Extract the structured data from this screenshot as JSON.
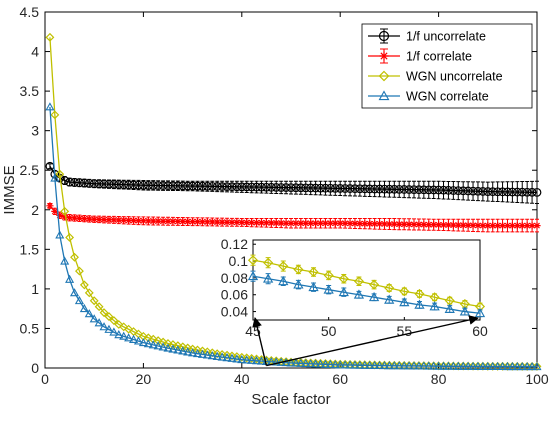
{
  "chart_data": [
    {
      "type": "line",
      "title": "",
      "xlabel": "Scale factor",
      "ylabel": "IMMSE",
      "xlim": [
        0,
        100
      ],
      "ylim": [
        0,
        4.5
      ],
      "xticks": [
        "0",
        "20",
        "40",
        "60",
        "80",
        "100"
      ],
      "yticks": [
        "0",
        "0.5",
        "1",
        "1.5",
        "2",
        "2.5",
        "3",
        "3.5",
        "4",
        "4.5"
      ],
      "grid": false,
      "legend_position": "top-right",
      "series": [
        {
          "name": "1/f uncorrelate",
          "color": "#000000",
          "marker": "circle",
          "error_bars": true,
          "x": [
            1,
            2,
            3,
            4,
            5,
            10,
            20,
            30,
            40,
            50,
            60,
            70,
            80,
            90,
            100
          ],
          "y": [
            2.55,
            2.45,
            2.4,
            2.37,
            2.35,
            2.33,
            2.31,
            2.3,
            2.29,
            2.28,
            2.27,
            2.26,
            2.25,
            2.23,
            2.22
          ],
          "err": [
            0.03,
            0.04,
            0.04,
            0.05,
            0.05,
            0.05,
            0.06,
            0.06,
            0.07,
            0.08,
            0.09,
            0.1,
            0.11,
            0.12,
            0.14
          ]
        },
        {
          "name": "1/f correlate",
          "color": "#ff0000",
          "marker": "star",
          "error_bars": true,
          "x": [
            1,
            2,
            3,
            4,
            5,
            10,
            20,
            30,
            40,
            50,
            60,
            70,
            80,
            90,
            100
          ],
          "y": [
            2.05,
            1.98,
            1.93,
            1.91,
            1.9,
            1.88,
            1.86,
            1.85,
            1.84,
            1.83,
            1.83,
            1.82,
            1.81,
            1.8,
            1.8
          ],
          "err": [
            0.03,
            0.04,
            0.04,
            0.04,
            0.04,
            0.04,
            0.05,
            0.05,
            0.05,
            0.06,
            0.06,
            0.07,
            0.07,
            0.08,
            0.08
          ]
        },
        {
          "name": "WGN uncorrelate",
          "color": "#c0c000",
          "marker": "diamond",
          "error_bars": false,
          "x": [
            1,
            2,
            3,
            4,
            5,
            6,
            8,
            10,
            12,
            15,
            20,
            25,
            30,
            35,
            40,
            45,
            50,
            55,
            60,
            70,
            80,
            90,
            100
          ],
          "y": [
            4.18,
            3.2,
            2.45,
            1.98,
            1.65,
            1.4,
            1.05,
            0.85,
            0.7,
            0.55,
            0.4,
            0.31,
            0.24,
            0.18,
            0.135,
            0.1,
            0.075,
            0.062,
            0.048,
            0.035,
            0.027,
            0.022,
            0.02
          ]
        },
        {
          "name": "WGN correlate",
          "color": "#1f77b4",
          "marker": "triangle",
          "error_bars": false,
          "x": [
            1,
            2,
            3,
            4,
            5,
            6,
            8,
            10,
            12,
            15,
            20,
            25,
            30,
            35,
            40,
            45,
            50,
            55,
            60,
            70,
            80,
            90,
            100
          ],
          "y": [
            3.3,
            2.4,
            1.68,
            1.35,
            1.12,
            0.95,
            0.75,
            0.62,
            0.52,
            0.42,
            0.32,
            0.25,
            0.19,
            0.145,
            0.105,
            0.082,
            0.063,
            0.05,
            0.038,
            0.028,
            0.022,
            0.018,
            0.016
          ]
        }
      ]
    },
    {
      "type": "line",
      "title": "",
      "xlim": [
        45,
        60
      ],
      "ylim": [
        0.03,
        0.125
      ],
      "xticks": [
        "45",
        "50",
        "55",
        "60"
      ],
      "yticks": [
        "0.04",
        "0.06",
        "0.08",
        "0.1",
        "0.12"
      ],
      "series": [
        {
          "name": "WGN uncorrelate",
          "color": "#c0c000",
          "marker": "diamond",
          "x": [
            45,
            46,
            47,
            48,
            49,
            50,
            51,
            52,
            53,
            54,
            55,
            56,
            57,
            58,
            59,
            60
          ],
          "y": [
            0.101,
            0.098,
            0.094,
            0.09,
            0.087,
            0.083,
            0.079,
            0.076,
            0.072,
            0.068,
            0.064,
            0.061,
            0.057,
            0.053,
            0.049,
            0.046
          ],
          "err": [
            0.006,
            0.006,
            0.006,
            0.005,
            0.005,
            0.005,
            0.005,
            0.005,
            0.005,
            0.004,
            0.004,
            0.004,
            0.004,
            0.004,
            0.004,
            0.004
          ]
        },
        {
          "name": "WGN correlate",
          "color": "#1f77b4",
          "marker": "triangle",
          "x": [
            45,
            46,
            47,
            48,
            49,
            50,
            51,
            52,
            53,
            54,
            55,
            56,
            57,
            58,
            59,
            60
          ],
          "y": [
            0.082,
            0.079,
            0.076,
            0.072,
            0.069,
            0.066,
            0.063,
            0.06,
            0.057,
            0.054,
            0.051,
            0.048,
            0.046,
            0.043,
            0.04,
            0.038
          ],
          "err": [
            0.006,
            0.006,
            0.005,
            0.005,
            0.005,
            0.005,
            0.005,
            0.004,
            0.004,
            0.004,
            0.004,
            0.004,
            0.004,
            0.004,
            0.004,
            0.004
          ]
        }
      ]
    }
  ]
}
